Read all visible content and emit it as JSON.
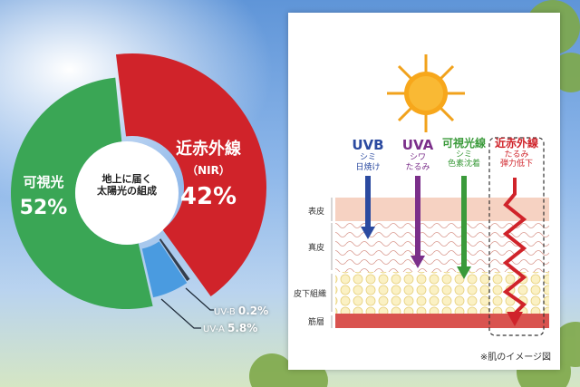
{
  "chart_data": {
    "type": "pie",
    "title": "地上に届く太陽光の組成",
    "title_lines": [
      "地上に届く",
      "太陽光の組成"
    ],
    "series": [
      {
        "name": "近赤外線",
        "sub": "（NIR）",
        "value": 42,
        "display": "42%",
        "color": "#d0232a"
      },
      {
        "name": "UV-B",
        "value": 0.2,
        "display": "0.2%",
        "color": "#333d4c"
      },
      {
        "name": "UV-A",
        "value": 5.8,
        "display": "5.8%",
        "color": "#4a9be0"
      },
      {
        "name": "可視光",
        "value": 52,
        "display": "52%",
        "color": "#3aa655"
      }
    ]
  },
  "diagram": {
    "rays": [
      {
        "name": "UVB",
        "desc": [
          "シミ",
          "日焼け"
        ],
        "color": "#2b4aa0"
      },
      {
        "name": "UVA",
        "desc": [
          "シワ",
          "たるみ"
        ],
        "color": "#7b2f8a"
      },
      {
        "name": "可視光線",
        "desc": [
          "シミ",
          "色素沈着"
        ],
        "color": "#3a9a3a"
      },
      {
        "name": "近赤外線",
        "desc": [
          "たるみ",
          "弾力低下"
        ],
        "color": "#d0232a"
      }
    ],
    "layers": [
      "表皮",
      "真皮",
      "皮下組織",
      "筋層"
    ],
    "note": "※肌のイメージ図",
    "colors": {
      "epidermis": "#f6d2c2",
      "dermis": "#f1c6bd",
      "subcutis": "#f6e7a6",
      "muscle": "#d9534f"
    }
  }
}
